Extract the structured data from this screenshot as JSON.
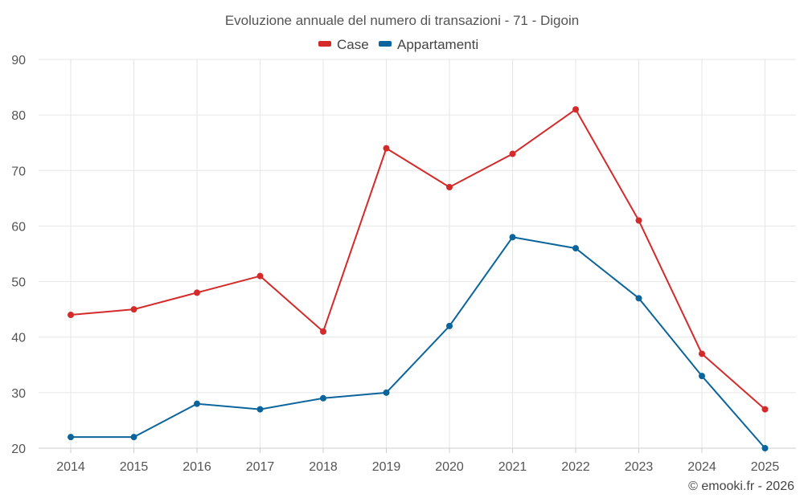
{
  "chart_data": {
    "type": "line",
    "title": "Evoluzione annuale del numero di transazioni - 71 - Digoin",
    "categories": [
      "2014",
      "2015",
      "2016",
      "2017",
      "2018",
      "2019",
      "2020",
      "2021",
      "2022",
      "2023",
      "2024",
      "2025"
    ],
    "series": [
      {
        "name": "Case",
        "color": "#d42a2a",
        "values": [
          44,
          45,
          48,
          51,
          41,
          74,
          67,
          73,
          81,
          61,
          37,
          27
        ]
      },
      {
        "name": "Appartamenti",
        "color": "#0b659c",
        "values": [
          22,
          22,
          28,
          27,
          29,
          30,
          42,
          58,
          56,
          47,
          33,
          20
        ]
      }
    ],
    "ylim": [
      20,
      90
    ],
    "yticks": [
      20,
      30,
      40,
      50,
      60,
      70,
      80,
      90
    ],
    "xlabel": "",
    "ylabel": "",
    "grid": true,
    "legend": "top-center"
  },
  "credit": "© emooki.fr - 2026"
}
